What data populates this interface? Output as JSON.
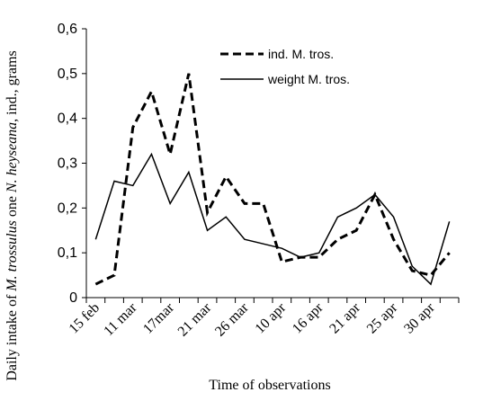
{
  "chart_data": {
    "type": "line",
    "x": [
      "15 feb",
      "",
      "11 mar",
      "",
      "17mar",
      "",
      "21 mar",
      "",
      "26 mar",
      "",
      "10 apr",
      "",
      "16 apr",
      "",
      "21 apr",
      "",
      "25 apr",
      "",
      "30 apr",
      ""
    ],
    "categories_labeled": [
      "15 feb",
      "11 mar",
      "17mar",
      "21 mar",
      "26 mar",
      "10 apr",
      "16 apr",
      "21 apr",
      "25 apr",
      "30 apr"
    ],
    "series": [
      {
        "name": "ind. M. tros.",
        "style": "dashed",
        "values": [
          0.03,
          0.05,
          0.38,
          0.46,
          0.32,
          0.5,
          0.19,
          0.27,
          0.21,
          0.21,
          0.08,
          0.09,
          0.09,
          0.13,
          0.15,
          0.23,
          0.13,
          0.06,
          0.05,
          0.1
        ]
      },
      {
        "name": "weight M. tros.",
        "style": "solid",
        "values": [
          0.13,
          0.26,
          0.25,
          0.32,
          0.21,
          0.28,
          0.15,
          0.18,
          0.13,
          0.12,
          0.11,
          0.09,
          0.1,
          0.18,
          0.2,
          0.23,
          0.18,
          0.07,
          0.03,
          0.17
        ]
      }
    ],
    "y_ticks": [
      "0",
      "0,1",
      "0,2",
      "0,3",
      "0,4",
      "0,5",
      "0,6"
    ],
    "ylim": [
      0,
      0.6
    ],
    "xlabel": "Time of observations",
    "ylabel_parts": [
      {
        "text": "Daily intake of ",
        "italic": false
      },
      {
        "text": "M. trossulus",
        "italic": true
      },
      {
        "text": " one ",
        "italic": false
      },
      {
        "text": "N. heyseana",
        "italic": true
      },
      {
        "text": ", ind., grams",
        "italic": false
      }
    ],
    "legend_position": "top-center",
    "grid": false,
    "colors": {
      "line": "#000000",
      "axis": "#000000"
    }
  }
}
